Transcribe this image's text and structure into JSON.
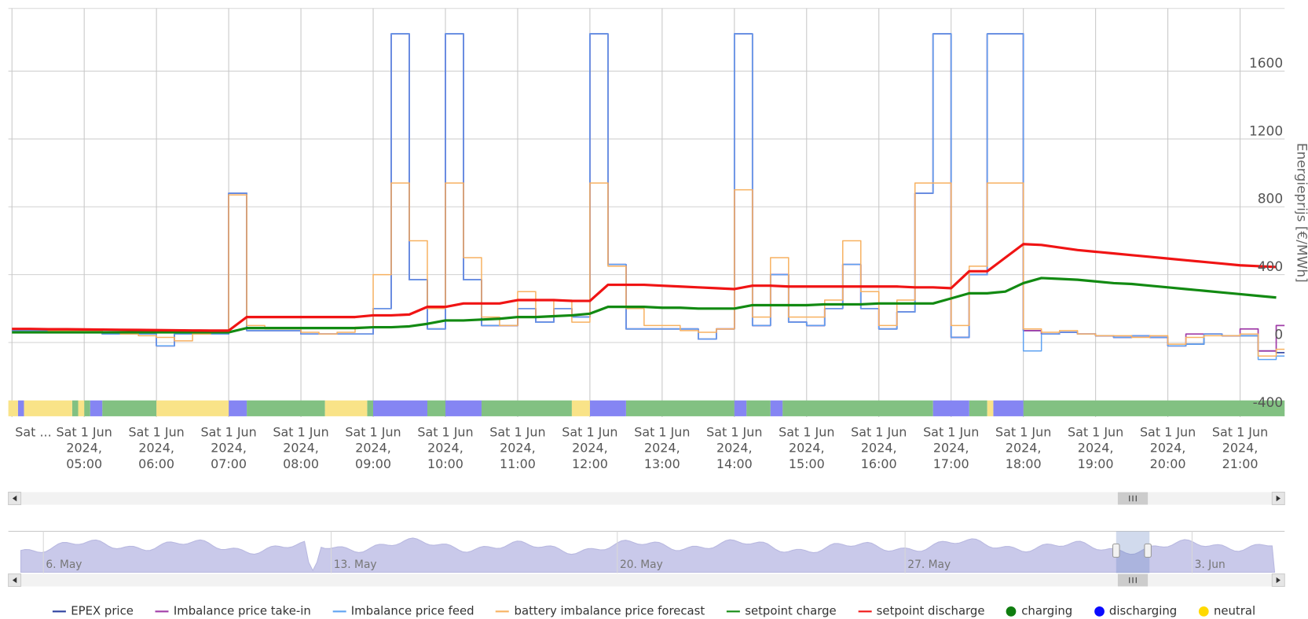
{
  "chart_data": {
    "type": "line",
    "y_axis_label": "Energieprijs [€/MWh]",
    "xlim": [
      "2024-06-01 03:57",
      "2024-06-01 21:37"
    ],
    "ylim": [
      -440,
      1970
    ],
    "yticks": [
      -400,
      0,
      400,
      800,
      1200,
      1600
    ],
    "grid": true,
    "legend": "bottom",
    "xticks": [
      {
        "value": "2024-06-01 04:00",
        "label": "Sat ..."
      },
      {
        "value": "2024-06-01 05:00",
        "label": "Sat 1 Jun 2024, 05:00"
      },
      {
        "value": "2024-06-01 06:00",
        "label": "Sat 1 Jun 2024, 06:00"
      },
      {
        "value": "2024-06-01 07:00",
        "label": "Sat 1 Jun 2024, 07:00"
      },
      {
        "value": "2024-06-01 08:00",
        "label": "Sat 1 Jun 2024, 08:00"
      },
      {
        "value": "2024-06-01 09:00",
        "label": "Sat 1 Jun 2024, 09:00"
      },
      {
        "value": "2024-06-01 10:00",
        "label": "Sat 1 Jun 2024, 10:00"
      },
      {
        "value": "2024-06-01 11:00",
        "label": "Sat 1 Jun 2024, 11:00"
      },
      {
        "value": "2024-06-01 12:00",
        "label": "Sat 1 Jun 2024, 12:00"
      },
      {
        "value": "2024-06-01 13:00",
        "label": "Sat 1 Jun 2024, 13:00"
      },
      {
        "value": "2024-06-01 14:00",
        "label": "Sat 1 Jun 2024, 14:00"
      },
      {
        "value": "2024-06-01 15:00",
        "label": "Sat 1 Jun 2024, 15:00"
      },
      {
        "value": "2024-06-01 16:00",
        "label": "Sat 1 Jun 2024, 16:00"
      },
      {
        "value": "2024-06-01 17:00",
        "label": "Sat 1 Jun 2024, 17:00"
      },
      {
        "value": "2024-06-01 18:00",
        "label": "Sat 1 Jun 2024, 18:00"
      },
      {
        "value": "2024-06-01 19:00",
        "label": "Sat 1 Jun 2024, 19:00"
      },
      {
        "value": "2024-06-01 20:00",
        "label": "Sat 1 Jun 2024, 20:00"
      },
      {
        "value": "2024-06-01 21:00",
        "label": "Sat 1 Jun 2024, 21:00"
      }
    ],
    "x": [
      "2024-06-01 04:00",
      "2024-06-01 04:15",
      "2024-06-01 04:30",
      "2024-06-01 04:45",
      "2024-06-01 05:00",
      "2024-06-01 05:15",
      "2024-06-01 05:30",
      "2024-06-01 05:45",
      "2024-06-01 06:00",
      "2024-06-01 06:15",
      "2024-06-01 06:30",
      "2024-06-01 06:45",
      "2024-06-01 07:00",
      "2024-06-01 07:15",
      "2024-06-01 07:30",
      "2024-06-01 07:45",
      "2024-06-01 08:00",
      "2024-06-01 08:15",
      "2024-06-01 08:30",
      "2024-06-01 08:45",
      "2024-06-01 09:00",
      "2024-06-01 09:15",
      "2024-06-01 09:30",
      "2024-06-01 09:45",
      "2024-06-01 10:00",
      "2024-06-01 10:15",
      "2024-06-01 10:30",
      "2024-06-01 10:45",
      "2024-06-01 11:00",
      "2024-06-01 11:15",
      "2024-06-01 11:30",
      "2024-06-01 11:45",
      "2024-06-01 12:00",
      "2024-06-01 12:15",
      "2024-06-01 12:30",
      "2024-06-01 12:45",
      "2024-06-01 13:00",
      "2024-06-01 13:15",
      "2024-06-01 13:30",
      "2024-06-01 13:45",
      "2024-06-01 14:00",
      "2024-06-01 14:15",
      "2024-06-01 14:30",
      "2024-06-01 14:45",
      "2024-06-01 15:00",
      "2024-06-01 15:15",
      "2024-06-01 15:30",
      "2024-06-01 15:45",
      "2024-06-01 16:00",
      "2024-06-01 16:15",
      "2024-06-01 16:30",
      "2024-06-01 16:45",
      "2024-06-01 17:00",
      "2024-06-01 17:15",
      "2024-06-01 17:30",
      "2024-06-01 17:45",
      "2024-06-01 18:00",
      "2024-06-01 18:15",
      "2024-06-01 18:30",
      "2024-06-01 18:45",
      "2024-06-01 19:00",
      "2024-06-01 19:15",
      "2024-06-01 19:30",
      "2024-06-01 19:45",
      "2024-06-01 20:00",
      "2024-06-01 20:15",
      "2024-06-01 20:30",
      "2024-06-01 20:45",
      "2024-06-01 21:00",
      "2024-06-01 21:15",
      "2024-06-01 21:30"
    ],
    "series": [
      {
        "name": "EPEX price",
        "color": "#2b3f9e",
        "step": true,
        "width": 1.6,
        "values": [
          70,
          70,
          70,
          70,
          70,
          50,
          50,
          50,
          -20,
          50,
          50,
          50,
          880,
          70,
          70,
          70,
          50,
          50,
          50,
          50,
          200,
          1820,
          370,
          80,
          1820,
          370,
          100,
          100,
          200,
          120,
          200,
          150,
          1820,
          460,
          80,
          80,
          80,
          80,
          20,
          80,
          1820,
          100,
          400,
          120,
          100,
          200,
          460,
          200,
          80,
          180,
          880,
          1820,
          30,
          400,
          1820,
          1820,
          70,
          50,
          60,
          50,
          40,
          30,
          40,
          30,
          -20,
          -10,
          50,
          40,
          40,
          -50,
          -60
        ]
      },
      {
        "name": "Imbalance price take-in",
        "color": "#a03ca8",
        "step": true,
        "width": 1.6,
        "values": [
          70,
          70,
          70,
          70,
          70,
          50,
          50,
          50,
          -20,
          50,
          50,
          50,
          880,
          70,
          70,
          70,
          50,
          50,
          50,
          50,
          200,
          1820,
          370,
          80,
          1820,
          370,
          100,
          100,
          200,
          120,
          200,
          150,
          1820,
          460,
          80,
          80,
          80,
          80,
          20,
          80,
          1820,
          100,
          400,
          120,
          100,
          200,
          460,
          200,
          80,
          180,
          880,
          1820,
          30,
          400,
          1820,
          1820,
          70,
          50,
          60,
          50,
          40,
          30,
          40,
          30,
          -20,
          50,
          50,
          40,
          80,
          -50,
          100
        ]
      },
      {
        "name": "Imbalance price feed",
        "color": "#5ea2f2",
        "step": true,
        "width": 1.4,
        "values": [
          70,
          70,
          70,
          70,
          70,
          50,
          50,
          50,
          -20,
          50,
          50,
          50,
          880,
          70,
          70,
          70,
          50,
          50,
          50,
          50,
          200,
          1820,
          370,
          80,
          1820,
          370,
          100,
          100,
          200,
          120,
          200,
          150,
          1820,
          460,
          80,
          80,
          80,
          80,
          20,
          80,
          1820,
          100,
          400,
          120,
          100,
          200,
          460,
          200,
          80,
          180,
          880,
          1820,
          30,
          400,
          1820,
          1820,
          -50,
          50,
          60,
          50,
          40,
          30,
          40,
          30,
          -20,
          -10,
          50,
          40,
          40,
          -100,
          -80
        ]
      },
      {
        "name": "battery imbalance price forecast",
        "color": "#f7b160",
        "step": true,
        "width": 1.4,
        "values": [
          80,
          80,
          70,
          70,
          70,
          60,
          50,
          40,
          30,
          10,
          50,
          60,
          870,
          100,
          80,
          80,
          60,
          50,
          60,
          90,
          400,
          940,
          600,
          200,
          940,
          500,
          150,
          100,
          300,
          150,
          250,
          120,
          940,
          450,
          200,
          100,
          100,
          70,
          60,
          80,
          900,
          150,
          500,
          150,
          150,
          250,
          600,
          300,
          100,
          250,
          940,
          940,
          100,
          450,
          940,
          940,
          80,
          60,
          70,
          50,
          40,
          40,
          30,
          40,
          -10,
          30,
          40,
          40,
          50,
          -80,
          -40
        ]
      },
      {
        "name": "setpoint charge",
        "color": "#128a12",
        "step": false,
        "width": 3,
        "values": [
          60,
          60,
          60,
          60,
          60,
          60,
          60,
          60,
          60,
          60,
          60,
          60,
          60,
          85,
          85,
          85,
          85,
          85,
          85,
          85,
          90,
          90,
          95,
          110,
          130,
          130,
          135,
          140,
          150,
          150,
          155,
          160,
          170,
          210,
          210,
          210,
          205,
          205,
          200,
          200,
          200,
          220,
          220,
          220,
          220,
          225,
          225,
          225,
          230,
          230,
          230,
          230,
          260,
          290,
          290,
          300,
          350,
          380,
          375,
          370,
          360,
          350,
          345,
          335,
          325,
          315,
          305,
          295,
          285,
          275,
          265
        ]
      },
      {
        "name": "setpoint discharge",
        "color": "#f01414",
        "step": false,
        "width": 3,
        "values": [
          80,
          80,
          78,
          78,
          77,
          76,
          75,
          74,
          73,
          72,
          71,
          70,
          70,
          150,
          150,
          150,
          150,
          150,
          150,
          150,
          160,
          160,
          165,
          210,
          210,
          230,
          230,
          230,
          250,
          250,
          250,
          245,
          245,
          340,
          340,
          340,
          335,
          330,
          325,
          320,
          315,
          335,
          335,
          330,
          330,
          330,
          330,
          330,
          330,
          330,
          325,
          325,
          320,
          420,
          420,
          500,
          580,
          575,
          560,
          545,
          535,
          525,
          515,
          505,
          495,
          485,
          475,
          465,
          455,
          450,
          445
        ]
      }
    ],
    "status": [
      {
        "name": "charging",
        "color": "#0f7d0f",
        "band_color": "#82c182",
        "spans": [
          [
            "2024-06-01 04:50",
            "2024-06-01 04:55"
          ],
          [
            "2024-06-01 05:00",
            "2024-06-01 05:05"
          ],
          [
            "2024-06-01 05:15",
            "2024-06-01 06:00"
          ],
          [
            "2024-06-01 07:15",
            "2024-06-01 08:20"
          ],
          [
            "2024-06-01 08:55",
            "2024-06-01 09:00"
          ],
          [
            "2024-06-01 09:45",
            "2024-06-01 10:00"
          ],
          [
            "2024-06-01 10:30",
            "2024-06-01 11:45"
          ],
          [
            "2024-06-01 12:30",
            "2024-06-01 14:00"
          ],
          [
            "2024-06-01 14:10",
            "2024-06-01 14:30"
          ],
          [
            "2024-06-01 14:40",
            "2024-06-01 16:45"
          ],
          [
            "2024-06-01 17:15",
            "2024-06-01 17:30"
          ],
          [
            "2024-06-01 18:00",
            "2024-06-01 21:37"
          ]
        ]
      },
      {
        "name": "discharging",
        "color": "#0a0aff",
        "band_color": "#8585f3",
        "spans": [
          [
            "2024-06-01 04:05",
            "2024-06-01 04:10"
          ],
          [
            "2024-06-01 05:05",
            "2024-06-01 05:15"
          ],
          [
            "2024-06-01 07:00",
            "2024-06-01 07:15"
          ],
          [
            "2024-06-01 09:00",
            "2024-06-01 09:45"
          ],
          [
            "2024-06-01 10:00",
            "2024-06-01 10:30"
          ],
          [
            "2024-06-01 12:00",
            "2024-06-01 12:30"
          ],
          [
            "2024-06-01 14:00",
            "2024-06-01 14:10"
          ],
          [
            "2024-06-01 14:30",
            "2024-06-01 14:40"
          ],
          [
            "2024-06-01 16:45",
            "2024-06-01 17:15"
          ],
          [
            "2024-06-01 17:35",
            "2024-06-01 18:00"
          ]
        ]
      },
      {
        "name": "neutral",
        "color": "#ffd900",
        "band_color": "#f9e388",
        "spans": [
          [
            "2024-06-01 03:57",
            "2024-06-01 04:05"
          ],
          [
            "2024-06-01 04:10",
            "2024-06-01 04:50"
          ],
          [
            "2024-06-01 04:55",
            "2024-06-01 05:00"
          ],
          [
            "2024-06-01 06:00",
            "2024-06-01 07:00"
          ],
          [
            "2024-06-01 08:20",
            "2024-06-01 08:55"
          ],
          [
            "2024-06-01 11:45",
            "2024-06-01 12:00"
          ],
          [
            "2024-06-01 17:30",
            "2024-06-01 17:35"
          ]
        ]
      }
    ]
  },
  "navigator": {
    "labels": [
      "6. May",
      "13. May",
      "20. May",
      "27. May",
      "3. Jun"
    ]
  }
}
